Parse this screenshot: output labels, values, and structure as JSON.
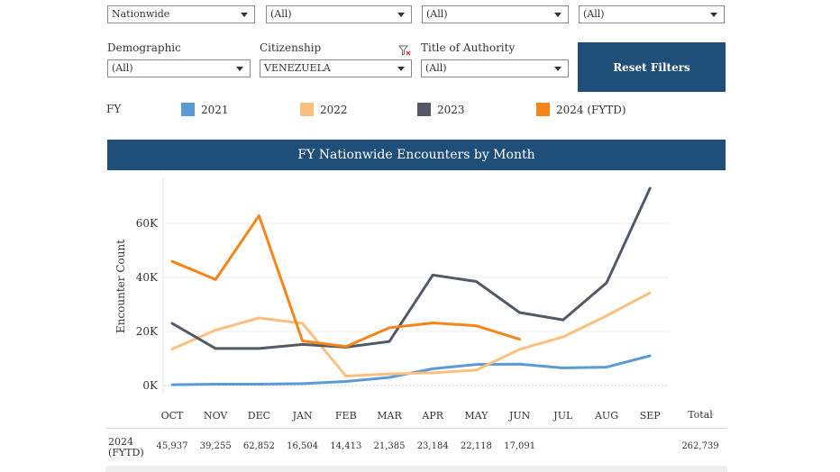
{
  "filters": {
    "row1": [
      {
        "value": "Nationwide"
      },
      {
        "value": "(All)"
      },
      {
        "value": "(All)"
      },
      {
        "value": "(All)"
      }
    ],
    "demographic": {
      "label": "Demographic",
      "value": "(All)"
    },
    "citizenship": {
      "label": "Citizenship",
      "value": "VENEZUELA"
    },
    "title_of_authority": {
      "label": "Title of Authority",
      "value": "(All)"
    },
    "reset_label": "Reset Filters"
  },
  "legend": {
    "title": "FY",
    "items": [
      {
        "label": "2021",
        "color": "#5b9bd5"
      },
      {
        "label": "2022",
        "color": "#fdbf7e"
      },
      {
        "label": "2023",
        "color": "#525a66"
      },
      {
        "label": "2024 (FYTD)",
        "color": "#f58518"
      }
    ]
  },
  "chart_data": {
    "type": "line",
    "title": "FY Nationwide Encounters by Month",
    "ylabel": "Encounter Count",
    "xlabel": "",
    "categories": [
      "OCT",
      "NOV",
      "DEC",
      "JAN",
      "FEB",
      "MAR",
      "APR",
      "MAY",
      "JUN",
      "JUL",
      "AUG",
      "SEP"
    ],
    "yticks": [
      "0K",
      "20K",
      "40K",
      "60K"
    ],
    "ylim": [
      0,
      75000
    ],
    "grid": true,
    "series": [
      {
        "name": "2021",
        "color": "#5b9bd5",
        "values": [
          300,
          500,
          500,
          700,
          1500,
          3000,
          6200,
          7800,
          7900,
          6500,
          6800,
          11000
        ]
      },
      {
        "name": "2022",
        "color": "#fdbf7e",
        "values": [
          13500,
          20500,
          25000,
          23000,
          3500,
          4300,
          4700,
          5700,
          13400,
          18000,
          25800,
          34300
        ]
      },
      {
        "name": "2023",
        "color": "#525a66",
        "values": [
          23000,
          13700,
          13700,
          15200,
          14200,
          16300,
          40900,
          38500,
          27000,
          24300,
          38000,
          73000
        ]
      },
      {
        "name": "2024 (FYTD)",
        "color": "#f58518",
        "values": [
          45937,
          39255,
          62852,
          16504,
          14413,
          21385,
          23184,
          22118,
          17091,
          null,
          null,
          null
        ]
      }
    ]
  },
  "table": {
    "total_header": "Total",
    "row_label_line1": "2024",
    "row_label_line2": "(FYTD)",
    "values": [
      "45,937",
      "39,255",
      "62,852",
      "16,504",
      "14,413",
      "21,385",
      "23,184",
      "22,118",
      "17,091",
      "",
      "",
      ""
    ],
    "total": "262,739"
  }
}
